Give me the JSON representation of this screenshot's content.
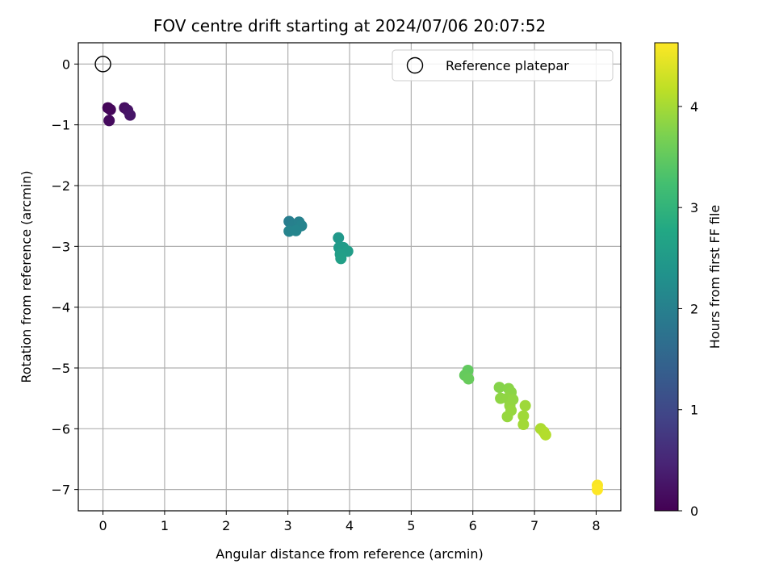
{
  "chart_data": {
    "type": "scatter",
    "title": "FOV centre drift starting at 2024/07/06 20:07:52",
    "xlabel": "Angular distance from reference (arcmin)",
    "ylabel": "Rotation from reference (arcmin)",
    "xlim": [
      -0.4,
      8.4
    ],
    "ylim": [
      -7.35,
      0.35
    ],
    "x_ticks": [
      0,
      1,
      2,
      3,
      4,
      5,
      6,
      7,
      8
    ],
    "y_ticks": [
      0,
      -1,
      -2,
      -3,
      -4,
      -5,
      -6,
      -7
    ],
    "grid": true,
    "legend": {
      "position": "top-right",
      "entries": [
        "Reference platepar"
      ]
    },
    "reference_point": {
      "name": "Reference platepar",
      "x": 0,
      "y": 0
    },
    "colorbar": {
      "label": "Hours from first FF file",
      "colormap": "viridis",
      "range": [
        0,
        4.63
      ],
      "ticks": [
        0,
        1,
        2,
        3,
        4
      ]
    },
    "points": [
      {
        "x": 0.08,
        "y": -0.72,
        "t": 0.05
      },
      {
        "x": 0.12,
        "y": -0.75,
        "t": 0.08
      },
      {
        "x": 0.1,
        "y": -0.93,
        "t": 0.12
      },
      {
        "x": 0.35,
        "y": -0.72,
        "t": 0.18
      },
      {
        "x": 0.4,
        "y": -0.76,
        "t": 0.22
      },
      {
        "x": 0.44,
        "y": -0.84,
        "t": 0.26
      },
      {
        "x": 3.02,
        "y": -2.59,
        "t": 1.95
      },
      {
        "x": 3.08,
        "y": -2.66,
        "t": 2.0
      },
      {
        "x": 3.18,
        "y": -2.6,
        "t": 2.02
      },
      {
        "x": 3.22,
        "y": -2.66,
        "t": 2.05
      },
      {
        "x": 3.02,
        "y": -2.75,
        "t": 2.08
      },
      {
        "x": 3.13,
        "y": -2.74,
        "t": 2.1
      },
      {
        "x": 3.82,
        "y": -2.86,
        "t": 2.45
      },
      {
        "x": 3.83,
        "y": -3.02,
        "t": 2.5
      },
      {
        "x": 3.9,
        "y": -3.02,
        "t": 2.52
      },
      {
        "x": 3.97,
        "y": -3.08,
        "t": 2.55
      },
      {
        "x": 3.85,
        "y": -3.13,
        "t": 2.57
      },
      {
        "x": 3.86,
        "y": -3.2,
        "t": 2.6
      },
      {
        "x": 5.92,
        "y": -5.04,
        "t": 3.5
      },
      {
        "x": 5.87,
        "y": -5.12,
        "t": 3.52
      },
      {
        "x": 5.93,
        "y": -5.18,
        "t": 3.55
      },
      {
        "x": 6.43,
        "y": -5.32,
        "t": 3.78
      },
      {
        "x": 6.58,
        "y": -5.34,
        "t": 3.8
      },
      {
        "x": 6.62,
        "y": -5.4,
        "t": 3.82
      },
      {
        "x": 6.45,
        "y": -5.5,
        "t": 3.84
      },
      {
        "x": 6.56,
        "y": -5.5,
        "t": 3.85
      },
      {
        "x": 6.65,
        "y": -5.52,
        "t": 3.86
      },
      {
        "x": 6.6,
        "y": -5.62,
        "t": 3.88
      },
      {
        "x": 6.62,
        "y": -5.7,
        "t": 3.9
      },
      {
        "x": 6.56,
        "y": -5.8,
        "t": 3.9
      },
      {
        "x": 6.85,
        "y": -5.62,
        "t": 3.95
      },
      {
        "x": 6.82,
        "y": -5.79,
        "t": 3.96
      },
      {
        "x": 6.82,
        "y": -5.93,
        "t": 3.98
      },
      {
        "x": 7.1,
        "y": -6.0,
        "t": 4.05
      },
      {
        "x": 7.15,
        "y": -6.05,
        "t": 4.08
      },
      {
        "x": 7.18,
        "y": -6.1,
        "t": 4.1
      },
      {
        "x": 8.02,
        "y": -6.93,
        "t": 4.6
      },
      {
        "x": 8.02,
        "y": -7.0,
        "t": 4.63
      }
    ]
  }
}
